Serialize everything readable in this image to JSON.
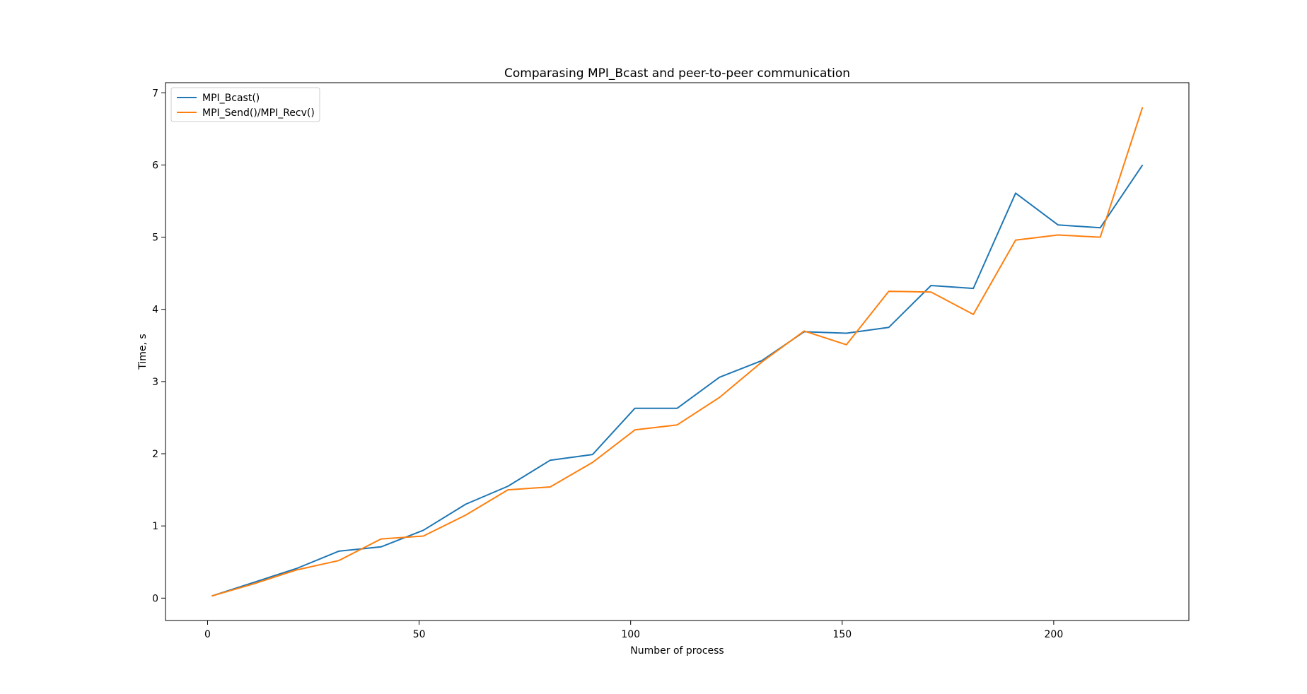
{
  "chart_data": {
    "type": "line",
    "title": "Comparasing MPI_Bcast and peer-to-peer communication",
    "xlabel": "Number of process",
    "ylabel": "Time, s",
    "xlim": [
      -9.95,
      231.95
    ],
    "ylim": [
      -0.31,
      7.14
    ],
    "xticks": [
      0,
      50,
      100,
      150,
      200
    ],
    "yticks": [
      0,
      1,
      2,
      3,
      4,
      5,
      6,
      7
    ],
    "grid": false,
    "legend_position": "top-left",
    "x": [
      1,
      11,
      21,
      31,
      41,
      51,
      61,
      71,
      81,
      91,
      101,
      111,
      121,
      131,
      141,
      151,
      161,
      171,
      181,
      191,
      201,
      211,
      221
    ],
    "series": [
      {
        "name": "MPI_Bcast()",
        "color": "#1f77b4",
        "values": [
          0.03,
          0.22,
          0.41,
          0.65,
          0.71,
          0.94,
          1.3,
          1.55,
          1.91,
          1.99,
          2.63,
          2.63,
          3.06,
          3.29,
          3.69,
          3.67,
          3.75,
          4.33,
          4.29,
          5.61,
          5.17,
          5.13,
          6.0
        ]
      },
      {
        "name": "MPI_Send()/MPI_Recv()",
        "color": "#ff7f0e",
        "values": [
          0.03,
          0.2,
          0.39,
          0.52,
          0.82,
          0.86,
          1.15,
          1.5,
          1.54,
          1.88,
          2.33,
          2.4,
          2.78,
          3.27,
          3.7,
          3.51,
          4.25,
          4.24,
          3.93,
          4.96,
          5.03,
          5.0,
          6.8
        ]
      }
    ]
  }
}
